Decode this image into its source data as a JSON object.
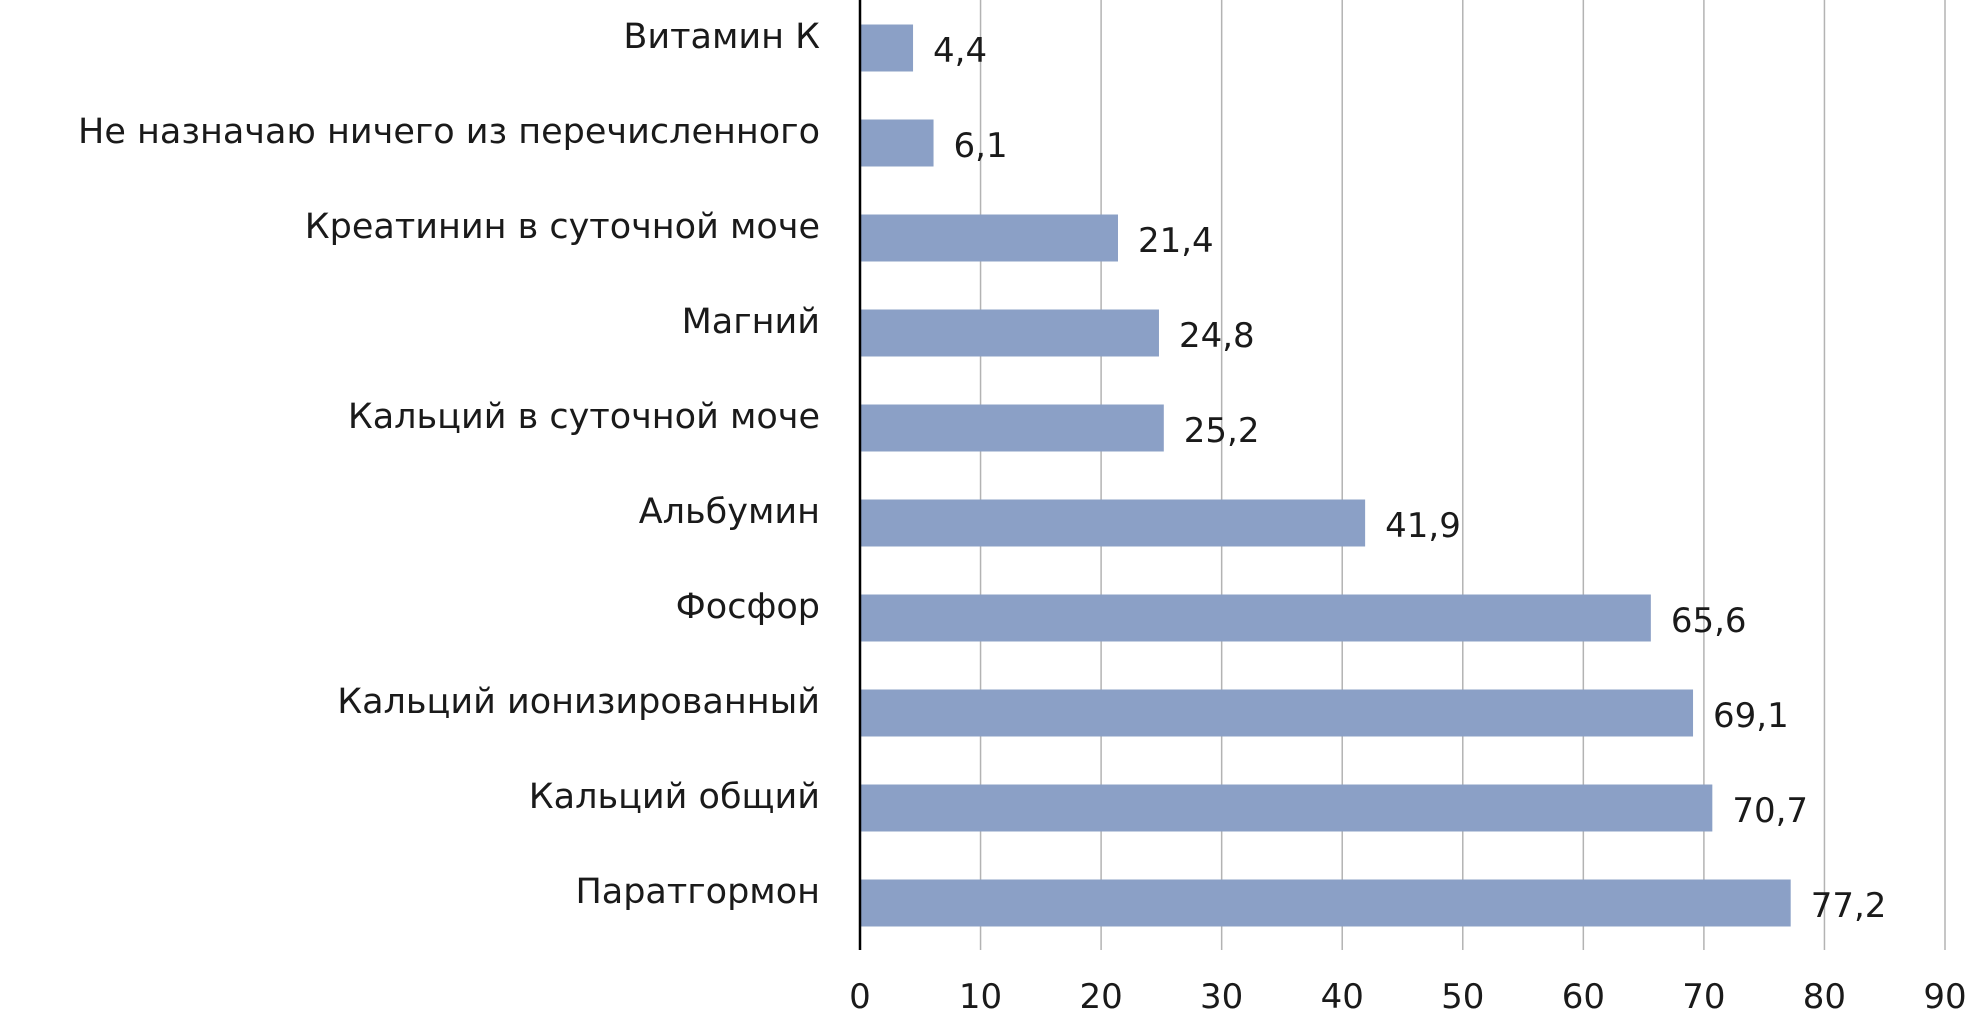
{
  "chart_data": {
    "type": "bar",
    "orientation": "horizontal",
    "categories": [
      "Витамин К",
      "Не назначаю ничего из перечисленного",
      "Креатинин в суточной моче",
      "Магний",
      "Кальций в суточной моче",
      "Альбумин",
      "Фосфор",
      "Кальций ионизированный",
      "Кальций общий",
      "Паратгормон"
    ],
    "values": [
      4.4,
      6.1,
      21.4,
      24.8,
      25.2,
      41.9,
      65.6,
      69.1,
      70.7,
      77.2
    ],
    "value_labels": [
      "4,4",
      "6,1",
      "21,4",
      "24,8",
      "25,2",
      "41,9",
      "65,6",
      "69,1",
      "70,7",
      "77,2"
    ],
    "xticks": [
      "0",
      "10",
      "20",
      "30",
      "40",
      "50",
      "60",
      "70",
      "80",
      "90"
    ],
    "xlim": [
      0,
      90
    ],
    "grid": true,
    "legend": false,
    "bar_color": "#8ba0c6"
  }
}
